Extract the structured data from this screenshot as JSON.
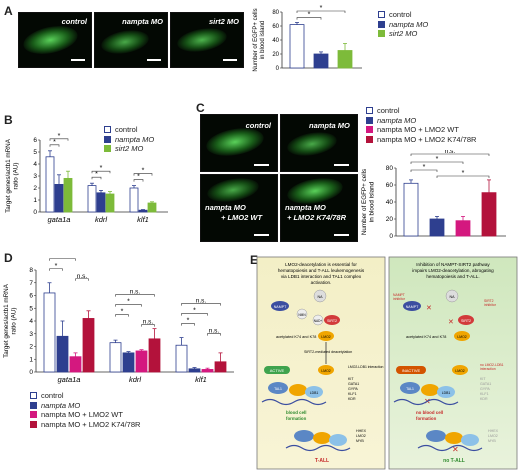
{
  "colors": {
    "control": "#ffffff",
    "nampta": "#2e3f8f",
    "sirt2": "#7dbb3a",
    "lmo2wt": "#d4187f",
    "lmo2mut": "#b3123b",
    "grid": "#888888"
  },
  "panels": {
    "A": "A",
    "B": "B",
    "C": "C",
    "D": "D",
    "E": "E"
  },
  "panelA": {
    "images": [
      {
        "label": "control"
      },
      {
        "label": "nampta MO"
      },
      {
        "label": "sirt2 MO"
      }
    ],
    "legend": [
      "control",
      "nampta MO",
      "sirt2 MO"
    ],
    "chart_data": {
      "type": "bar",
      "categories": [
        "control",
        "nampta MO",
        "sirt2 MO"
      ],
      "values": [
        62,
        20,
        25
      ],
      "errors": [
        3,
        3,
        10
      ],
      "ylim": [
        0,
        80
      ],
      "yticks": [
        "0",
        "20",
        "40",
        "60",
        "80"
      ],
      "ylabel": "Number of EGFP+ cells in blood island",
      "significance": [
        "*",
        "*"
      ]
    }
  },
  "panelB": {
    "legend": [
      "control",
      "nampta MO",
      "sirt2 MO"
    ],
    "chart_data": {
      "type": "bar",
      "categories": [
        "gata1a",
        "kdrl",
        "klf1"
      ],
      "series": [
        {
          "name": "control",
          "values": [
            4.6,
            2.2,
            2.0
          ],
          "errors": [
            0.5,
            0.2,
            0.2
          ]
        },
        {
          "name": "nampta MO",
          "values": [
            2.3,
            1.6,
            0.15
          ],
          "errors": [
            0.8,
            0.2,
            0.05
          ]
        },
        {
          "name": "sirt2 MO",
          "values": [
            2.8,
            1.5,
            0.75
          ],
          "errors": [
            0.6,
            0.2,
            0.1
          ]
        }
      ],
      "ylim": [
        0,
        6
      ],
      "yticks": [
        "0",
        "1",
        "2",
        "3",
        "4",
        "5",
        "6"
      ],
      "ylabel": "Target genes/actb1 mRNA ratio (AU)",
      "significance": [
        "*",
        "*",
        "*",
        "*",
        "*",
        "*"
      ]
    }
  },
  "panelC": {
    "images": [
      {
        "label": "control"
      },
      {
        "label": "nampta MO"
      },
      {
        "line1": "nampta MO",
        "line2": "+ LMO2 WT"
      },
      {
        "line1": "nampta MO",
        "line2": "+ LMO2 K74/78R"
      }
    ],
    "legend": [
      "control",
      "nampta MO",
      "nampta MO + LMO2 WT",
      "nampta MO + LMO2 K74/78R"
    ],
    "chart_data": {
      "type": "bar",
      "categories": [
        "control",
        "nampta MO",
        "nampta MO + LMO2 WT",
        "nampta MO + LMO2 K74/78R"
      ],
      "values": [
        62,
        20,
        18,
        51
      ],
      "errors": [
        4,
        3,
        5,
        15
      ],
      "ylim": [
        0,
        80
      ],
      "yticks": [
        "0",
        "20",
        "40",
        "60",
        "80"
      ],
      "ylabel": "Number of EGFP+ cells in blood island",
      "significance": [
        "n.s.",
        "*",
        "*",
        "*"
      ]
    }
  },
  "panelD": {
    "legend": [
      "control",
      "nampta MO",
      "nampta MO + LMO2 WT",
      "nampta MO + LMO2 K74/78R"
    ],
    "chart_data": {
      "type": "bar",
      "categories": [
        "gata1a",
        "kdrl",
        "klf1"
      ],
      "series": [
        {
          "name": "control",
          "values": [
            6.2,
            2.3,
            2.1
          ],
          "errors": [
            0.8,
            0.2,
            0.6
          ]
        },
        {
          "name": "nampta MO",
          "values": [
            2.8,
            1.5,
            0.25
          ],
          "errors": [
            1.2,
            0.1,
            0.1
          ]
        },
        {
          "name": "nampta MO + LMO2 WT",
          "values": [
            1.2,
            1.65,
            0.2
          ],
          "errors": [
            0.3,
            0.1,
            0.1
          ]
        },
        {
          "name": "nampta MO + LMO2 K74/78R",
          "values": [
            4.2,
            2.6,
            0.8
          ],
          "errors": [
            0.6,
            0.8,
            0.7
          ]
        }
      ],
      "ylim": [
        0,
        8
      ],
      "yticks": [
        "0",
        "1",
        "2",
        "3",
        "4",
        "5",
        "6",
        "7",
        "8"
      ],
      "ylabel": "Target genes/actb1 mRNA ratio (AU)",
      "significance": [
        "n.s.",
        "*",
        "*",
        "n.s.",
        "n.s.",
        "*",
        "*",
        "n.s.",
        "n.s.",
        "*",
        "*",
        "n.s."
      ]
    }
  },
  "panelE": {
    "left_title": "LMO2-deacetylation is essential for hematopoiesis and T-ALL leukemogenesis via LDB1 interaction and TAL1 complex activation.",
    "right_title": "Inhibition of NAMPT-SIRT2 pathway impairs LMO2-deacetylation, abrogating hematopoiesis and T-ALL.",
    "nampt": "NAMPT",
    "nmn": "NMN",
    "na": "NA",
    "nad": "NAD+",
    "sirt2": "SIRT2",
    "acetylated": "acetylated K74 and K78",
    "deacetylation": "SIRT2-mediated deacetylation",
    "active": "ACTIVE",
    "inactive": "INACTIVE",
    "lmo2": "LMO2",
    "ldb1": "LDB1",
    "tal1": "TAL1",
    "interaction": "LMO2-LDB1 interaction",
    "no_interaction": "no LMO2-LDB1 interaction",
    "inhibitor_l": "NAMPT inhibitor",
    "inhibitor_r": "SIRT2 inhibitor",
    "targets_top": [
      "KIT",
      "GATA1",
      "GYPA",
      "KLF1",
      "KDR"
    ],
    "targets_bottom": [
      "HHEX",
      "LMO2",
      "MYB"
    ],
    "blood_cell": "blood cell formation",
    "no_blood_cell": "no blood cell formation",
    "tall": "T-ALL",
    "no_tall": "no T-ALL"
  }
}
